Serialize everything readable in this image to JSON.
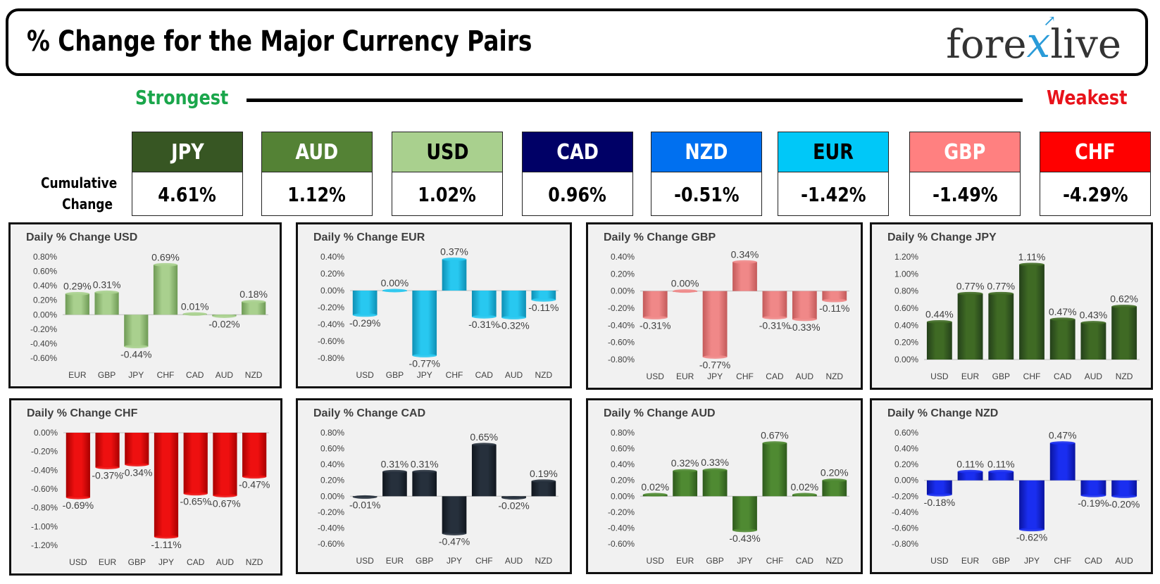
{
  "header": {
    "title": "% Change for the Major Currency Pairs",
    "logo_left": "fore",
    "logo_x": "x",
    "logo_right": "live"
  },
  "scale": {
    "strongest": "Strongest",
    "weakest": "Weakest"
  },
  "cumulative_label_1": "Cumulative",
  "cumulative_label_2": "Change",
  "ranking": [
    {
      "currency": "JPY",
      "change": "4.61%",
      "bg": "#375623",
      "fg": "#ffffff"
    },
    {
      "currency": "AUD",
      "change": "1.12%",
      "bg": "#548235",
      "fg": "#ffffff"
    },
    {
      "currency": "USD",
      "change": "1.02%",
      "bg": "#a9d08e",
      "fg": "#000000"
    },
    {
      "currency": "CAD",
      "change": "0.96%",
      "bg": "#000066",
      "fg": "#ffffff"
    },
    {
      "currency": "NZD",
      "change": "-0.51%",
      "bg": "#0070f0",
      "fg": "#ffffff"
    },
    {
      "currency": "EUR",
      "change": "-1.42%",
      "bg": "#00c8f8",
      "fg": "#000000"
    },
    {
      "currency": "GBP",
      "change": "-1.49%",
      "bg": "#ff8080",
      "fg": "#ffffff"
    },
    {
      "currency": "CHF",
      "change": "-4.29%",
      "bg": "#ff0000",
      "fg": "#ffffff"
    }
  ],
  "chart_data": [
    {
      "type": "bar",
      "title": "Daily % Change USD",
      "color": "#a9d08e",
      "dark": "#6e9a55",
      "categories": [
        "EUR",
        "GBP",
        "JPY",
        "CHF",
        "CAD",
        "AUD",
        "NZD"
      ],
      "values": [
        0.29,
        0.31,
        -0.44,
        0.69,
        0.01,
        -0.02,
        0.18
      ],
      "labels": [
        "0.29%",
        "0.31%",
        "-0.44%",
        "0.69%",
        "0.01%",
        "-0.02%",
        "0.18%"
      ],
      "yticks": [
        "0.80%",
        "0.60%",
        "0.40%",
        "0.20%",
        "0.00%",
        "-0.20%",
        "-0.40%",
        "-0.60%"
      ],
      "ylim": [
        -0.6,
        0.8
      ]
    },
    {
      "type": "bar",
      "title": "Daily % Change EUR",
      "color": "#28c8f0",
      "dark": "#0e8fb4",
      "categories": [
        "USD",
        "GBP",
        "JPY",
        "CHF",
        "CAD",
        "AUD",
        "NZD"
      ],
      "values": [
        -0.29,
        0.0,
        -0.77,
        0.37,
        -0.31,
        -0.32,
        -0.11
      ],
      "labels": [
        "-0.29%",
        "0.00%",
        "-0.77%",
        "0.37%",
        "-0.31%",
        "-0.32%",
        "-0.11%"
      ],
      "yticks": [
        "0.40%",
        "0.20%",
        "0.00%",
        "-0.20%",
        "-0.40%",
        "-0.60%",
        "-0.80%"
      ],
      "ylim": [
        -0.8,
        0.4
      ]
    },
    {
      "type": "bar",
      "title": "Daily % Change GBP",
      "color": "#f08888",
      "dark": "#c35a5a",
      "categories": [
        "USD",
        "EUR",
        "JPY",
        "CHF",
        "CAD",
        "AUD",
        "NZD"
      ],
      "values": [
        -0.31,
        0.0,
        -0.77,
        0.34,
        -0.31,
        -0.33,
        -0.11
      ],
      "labels": [
        "-0.31%",
        "0.00%",
        "-0.77%",
        "0.34%",
        "-0.31%",
        "-0.33%",
        "-0.11%"
      ],
      "yticks": [
        "0.40%",
        "0.20%",
        "0.00%",
        "-0.20%",
        "-0.40%",
        "-0.60%",
        "-0.80%"
      ],
      "ylim": [
        -0.8,
        0.4
      ]
    },
    {
      "type": "bar",
      "title": "Daily % Change JPY",
      "color": "#3f6a24",
      "dark": "#24401a",
      "categories": [
        "USD",
        "EUR",
        "GBP",
        "CHF",
        "CAD",
        "AUD",
        "NZD"
      ],
      "values": [
        0.44,
        0.77,
        0.77,
        1.11,
        0.47,
        0.43,
        0.62
      ],
      "labels": [
        "0.44%",
        "0.77%",
        "0.77%",
        "1.11%",
        "0.47%",
        "0.43%",
        "0.62%"
      ],
      "yticks": [
        "1.20%",
        "1.00%",
        "0.80%",
        "0.60%",
        "0.40%",
        "0.20%",
        "0.00%"
      ],
      "ylim": [
        0,
        1.2
      ]
    },
    {
      "type": "bar",
      "title": "Daily % Change CHF",
      "color": "#ee1010",
      "dark": "#a80000",
      "categories": [
        "USD",
        "EUR",
        "GBP",
        "JPY",
        "CAD",
        "AUD",
        "NZD"
      ],
      "values": [
        -0.69,
        -0.37,
        -0.34,
        -1.11,
        -0.65,
        -0.67,
        -0.47
      ],
      "labels": [
        "-0.69%",
        "-0.37%",
        "-0.34%",
        "-1.11%",
        "-0.65%",
        "-0.67%",
        "-0.47%"
      ],
      "yticks": [
        "0.00%",
        "-0.20%",
        "-0.40%",
        "-0.60%",
        "-0.80%",
        "-1.00%",
        "-1.20%"
      ],
      "ylim": [
        -1.2,
        0
      ]
    },
    {
      "type": "bar",
      "title": "Daily % Change CAD",
      "color": "#26303c",
      "dark": "#10161e",
      "categories": [
        "USD",
        "EUR",
        "GBP",
        "JPY",
        "CHF",
        "AUD",
        "NZD"
      ],
      "values": [
        -0.01,
        0.31,
        0.31,
        -0.47,
        0.65,
        -0.02,
        0.19
      ],
      "labels": [
        "-0.01%",
        "0.31%",
        "0.31%",
        "-0.47%",
        "0.65%",
        "-0.02%",
        "0.19%"
      ],
      "yticks": [
        "0.80%",
        "0.60%",
        "0.40%",
        "0.20%",
        "0.00%",
        "-0.20%",
        "-0.40%",
        "-0.60%"
      ],
      "ylim": [
        -0.6,
        0.8
      ]
    },
    {
      "type": "bar",
      "title": "Daily % Change AUD",
      "color": "#4f8a32",
      "dark": "#2e5a1c",
      "categories": [
        "USD",
        "EUR",
        "GBP",
        "JPY",
        "CHF",
        "CAD",
        "NZD"
      ],
      "values": [
        0.02,
        0.32,
        0.33,
        -0.43,
        0.67,
        0.02,
        0.2
      ],
      "labels": [
        "0.02%",
        "0.32%",
        "0.33%",
        "-0.43%",
        "0.67%",
        "0.02%",
        "0.20%"
      ],
      "yticks": [
        "0.80%",
        "0.60%",
        "0.40%",
        "0.20%",
        "0.00%",
        "-0.20%",
        "-0.40%",
        "-0.60%"
      ],
      "ylim": [
        -0.6,
        0.8
      ]
    },
    {
      "type": "bar",
      "title": "Daily % Change NZD",
      "color": "#1a2ef0",
      "dark": "#0a14a0",
      "categories": [
        "USD",
        "EUR",
        "GBP",
        "JPY",
        "CHF",
        "CAD",
        "AUD"
      ],
      "values": [
        -0.18,
        0.11,
        0.11,
        -0.62,
        0.47,
        -0.19,
        -0.2
      ],
      "labels": [
        "-0.18%",
        "0.11%",
        "0.11%",
        "-0.62%",
        "0.47%",
        "-0.19%",
        "-0.20%"
      ],
      "yticks": [
        "0.60%",
        "0.40%",
        "0.20%",
        "0.00%",
        "-0.20%",
        "-0.40%",
        "-0.60%",
        "-0.80%"
      ],
      "ylim": [
        -0.8,
        0.6
      ]
    }
  ]
}
